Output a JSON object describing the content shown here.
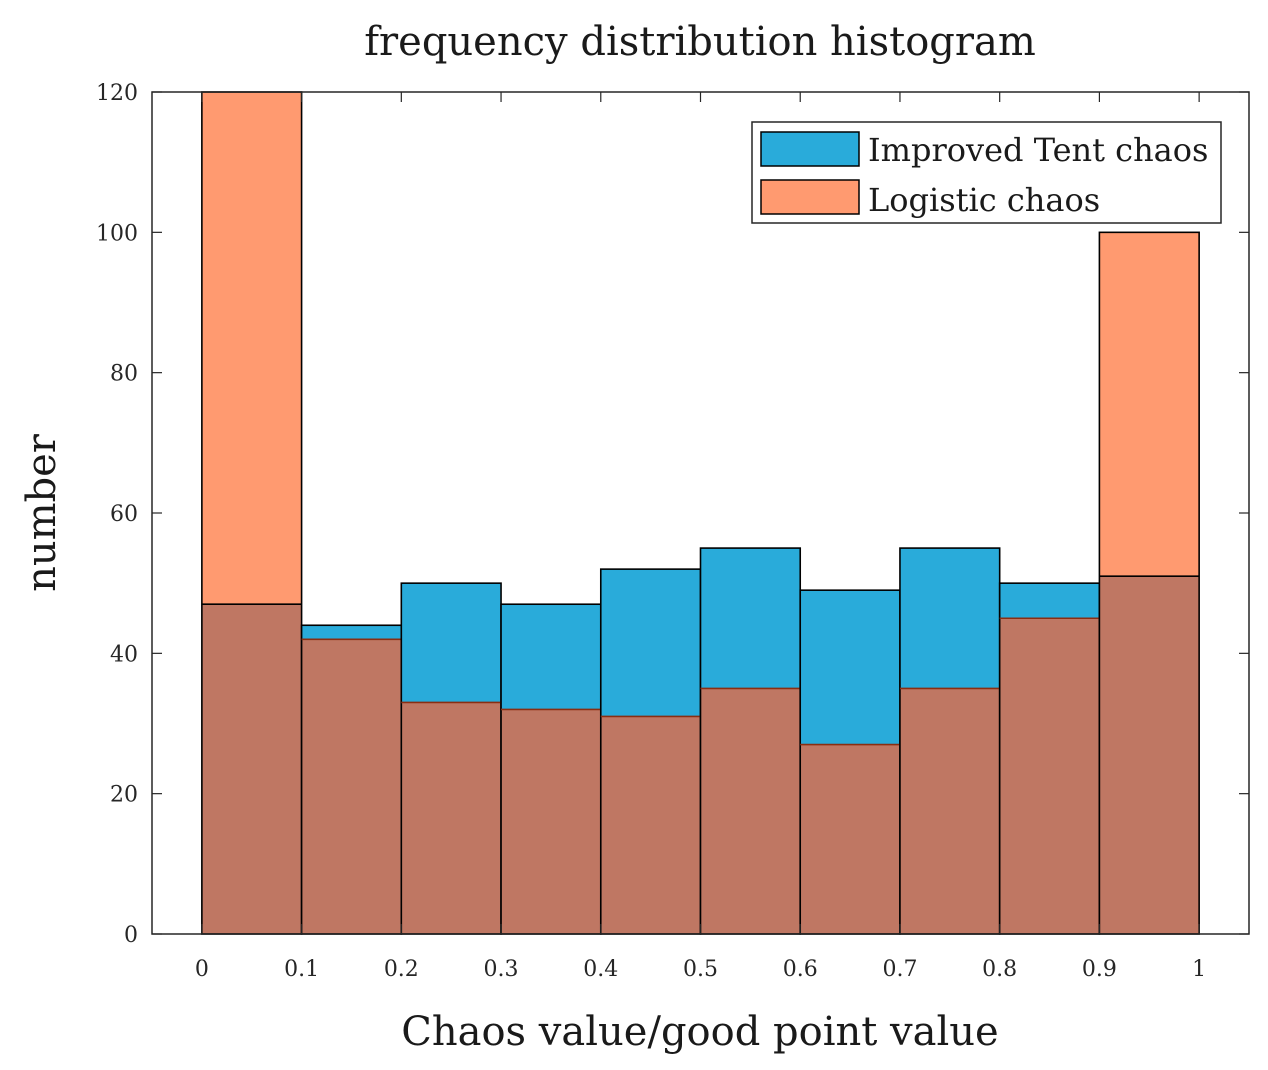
{
  "chart_data": {
    "type": "bar",
    "title": "frequency distribution histogram",
    "xlabel": "Chaos value/good point value",
    "ylabel": "number",
    "bin_edges": [
      0,
      0.1,
      0.2,
      0.3,
      0.4,
      0.5,
      0.6,
      0.7,
      0.8,
      0.9,
      1
    ],
    "xlim": [
      -0.05,
      1.05
    ],
    "ylim": [
      0,
      120
    ],
    "x_ticks": [
      "0",
      "0.1",
      "0.2",
      "0.3",
      "0.4",
      "0.5",
      "0.6",
      "0.7",
      "0.8",
      "0.9",
      "1"
    ],
    "y_ticks": [
      "0",
      "20",
      "40",
      "60",
      "80",
      "100",
      "120"
    ],
    "x_tick_values": [
      0,
      0.1,
      0.2,
      0.3,
      0.4,
      0.5,
      0.6,
      0.7,
      0.8,
      0.9,
      1
    ],
    "y_tick_values": [
      0,
      20,
      40,
      60,
      80,
      100,
      120
    ],
    "legend_position": "top-right",
    "series": [
      {
        "name": "Improved Tent chaos",
        "color": "#29ABDA",
        "values": [
          47,
          44,
          50,
          47,
          52,
          55,
          49,
          55,
          50,
          51
        ]
      },
      {
        "name": "Logistic chaos",
        "color": "#FF9A70",
        "values": [
          120,
          42,
          33,
          32,
          31,
          35,
          27,
          35,
          45,
          100
        ]
      }
    ],
    "overlap_color": "#BF7763"
  }
}
